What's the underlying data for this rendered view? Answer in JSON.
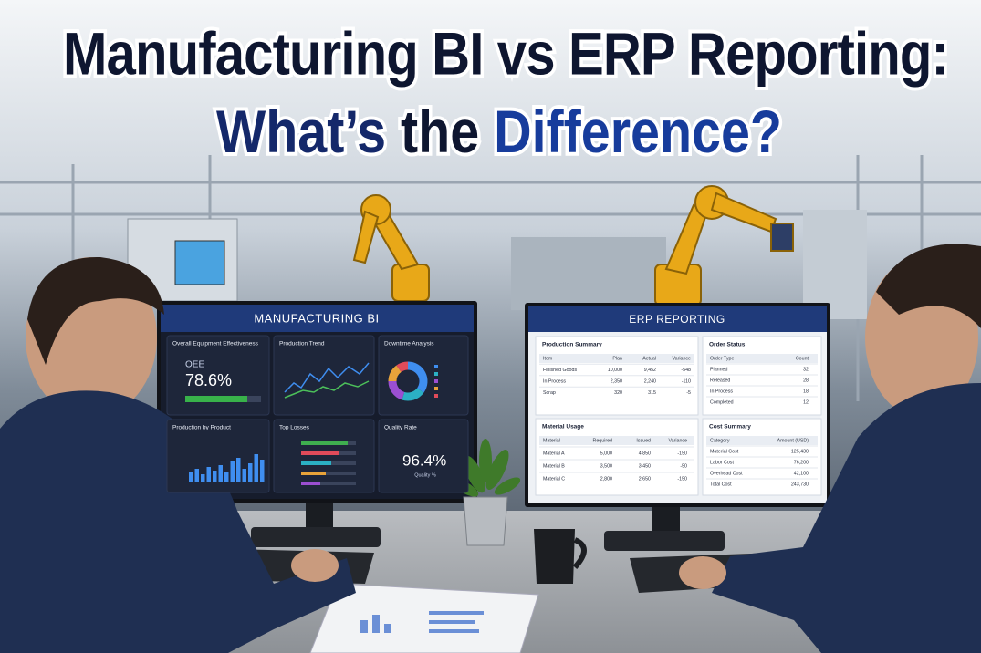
{
  "title": {
    "line1": "Manufacturing BI vs ERP Reporting:",
    "line2": [
      "What’s",
      "the",
      "Difference?"
    ]
  },
  "bi_dashboard": {
    "header": "MANUFACTURING BI",
    "oee_panel": {
      "title": "Overall Equipment Effectiveness",
      "label": "OEE",
      "value": "78.6%"
    },
    "trend_panel": {
      "title": "Production Trend"
    },
    "downtime_panel": {
      "title": "Downtime Analysis"
    },
    "product_panel": {
      "title": "Production by Product"
    },
    "losses_panel": {
      "title": "Top Losses"
    },
    "quality_panel": {
      "title": "Quality Rate",
      "value": "96.4%",
      "label": "Quality %"
    }
  },
  "erp_report": {
    "header": "ERP REPORTING",
    "production_summary": {
      "title": "Production Summary",
      "columns": [
        "Item",
        "Plan",
        "Actual",
        "Variance"
      ],
      "rows": [
        [
          "Finished Goods",
          "10,000",
          "9,452",
          "-548"
        ],
        [
          "In Process",
          "2,350",
          "2,240",
          "-110"
        ],
        [
          "Scrap",
          "320",
          "315",
          "-5"
        ]
      ]
    },
    "order_status": {
      "title": "Order Status",
      "columns": [
        "Order Type",
        "Count"
      ],
      "rows": [
        [
          "Planned",
          "32"
        ],
        [
          "Released",
          "28"
        ],
        [
          "In Process",
          "18"
        ],
        [
          "Completed",
          "12"
        ]
      ]
    },
    "material_usage": {
      "title": "Material Usage",
      "columns": [
        "Material",
        "Required",
        "Issued",
        "Variance"
      ],
      "rows": [
        [
          "Material A",
          "5,000",
          "4,850",
          "-150"
        ],
        [
          "Material B",
          "3,500",
          "3,450",
          "-50"
        ],
        [
          "Material C",
          "2,800",
          "2,650",
          "-150"
        ]
      ]
    },
    "cost_summary": {
      "title": "Cost Summary",
      "columns": [
        "Category",
        "Amount (USD)"
      ],
      "rows": [
        [
          "Material Cost",
          "125,430"
        ],
        [
          "Labor Cost",
          "76,200"
        ],
        [
          "Overhead Cost",
          "42,100"
        ],
        [
          "Total Cost",
          "243,730"
        ]
      ]
    }
  }
}
